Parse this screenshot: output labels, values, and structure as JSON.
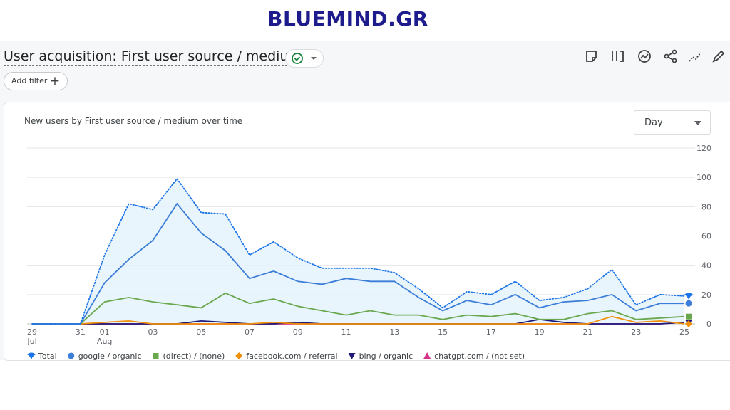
{
  "header": {
    "brand": "BLUEMIND.GR",
    "title": "User acquisition: First user source / medium",
    "add_filter": "Add filter"
  },
  "card": {
    "dropdown": "Day"
  },
  "chart_data": {
    "type": "line",
    "title": "New users by First user source / medium over time",
    "categories": [
      "29",
      null,
      "31",
      "01",
      null,
      "03",
      null,
      "05",
      null,
      "07",
      null,
      "09",
      null,
      "11",
      null,
      "13",
      null,
      "15",
      null,
      "17",
      null,
      "19",
      null,
      "21",
      null,
      "23",
      null,
      "25"
    ],
    "x_months": [
      "Jul",
      "Aug"
    ],
    "ylim": [
      0,
      120
    ],
    "yticks": [
      0,
      20,
      40,
      60,
      80,
      100,
      120
    ],
    "grid": true,
    "y_axis_side": "right",
    "series": [
      {
        "name": "Total",
        "color": "#1a73e8",
        "style": "dotted",
        "area": true,
        "marker": "drop",
        "values": [
          0,
          0,
          0,
          47,
          82,
          78,
          99,
          76,
          75,
          47,
          56,
          45,
          38,
          38,
          38,
          35,
          24,
          11,
          22,
          20,
          29,
          16,
          18,
          24,
          37,
          13,
          20,
          19
        ]
      },
      {
        "name": "google / organic",
        "color": "#3b7dd8",
        "style": "solid",
        "marker": "circle",
        "values": [
          0,
          0,
          0,
          28,
          44,
          57,
          82,
          62,
          50,
          31,
          36,
          29,
          27,
          31,
          29,
          29,
          18,
          9,
          16,
          13,
          20,
          11,
          15,
          16,
          20,
          9,
          14,
          14
        ]
      },
      {
        "name": "(direct) / (none)",
        "color": "#6aa84f",
        "style": "solid",
        "marker": "square",
        "values": [
          0,
          0,
          0,
          15,
          18,
          15,
          13,
          11,
          21,
          14,
          17,
          12,
          9,
          6,
          9,
          6,
          6,
          3,
          6,
          5,
          7,
          3,
          3,
          7,
          9,
          3,
          4,
          5
        ]
      },
      {
        "name": "facebook.com / referral",
        "color": "#f0900b",
        "style": "solid",
        "marker": "diamond",
        "values": [
          0,
          0,
          0,
          1,
          2,
          0,
          0,
          0,
          0,
          0,
          1,
          0,
          0,
          0,
          0,
          0,
          0,
          0,
          0,
          0,
          0,
          0,
          0,
          0,
          5,
          1,
          2,
          0
        ]
      },
      {
        "name": "bing / organic",
        "color": "#1f1a7a",
        "style": "solid",
        "marker": "triangle-down",
        "values": [
          0,
          0,
          0,
          0,
          0,
          0,
          0,
          2,
          1,
          0,
          0,
          1,
          0,
          0,
          0,
          0,
          0,
          0,
          0,
          0,
          0,
          3,
          1,
          0,
          0,
          0,
          0,
          1
        ]
      },
      {
        "name": "chatgpt.com / (not set)",
        "color": "#d6338a",
        "style": "solid",
        "marker": "triangle",
        "values": [
          0,
          0,
          0,
          0,
          0,
          0,
          0,
          0,
          0,
          0,
          0,
          0,
          0,
          0,
          0,
          0,
          0,
          0,
          0,
          0,
          0,
          0,
          0,
          0,
          0,
          0,
          0,
          1
        ]
      }
    ]
  }
}
